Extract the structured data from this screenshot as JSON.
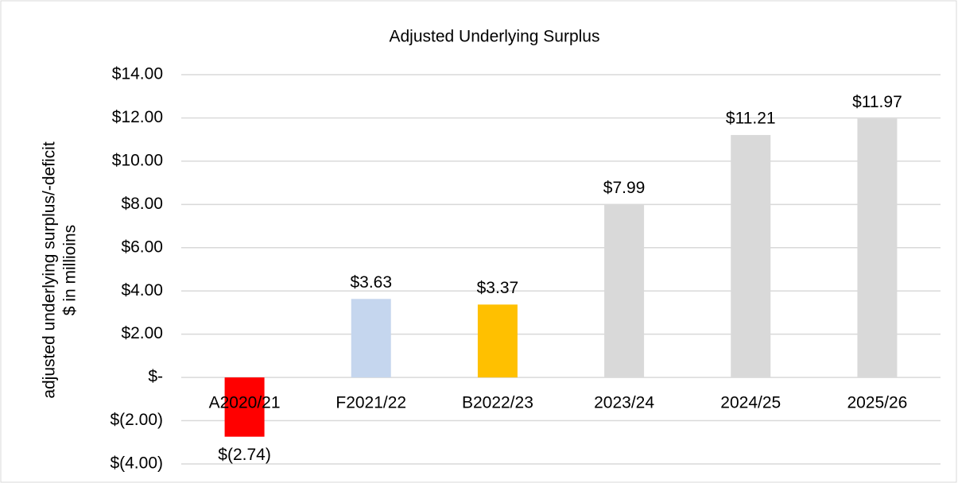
{
  "chart_data": {
    "type": "bar",
    "title": "Adjusted Underlying Surplus",
    "ylabel": [
      "adjusted underlying surplus/-deficit",
      "$ in millioins"
    ],
    "categories": [
      "A2020/21",
      "F2021/22",
      "B2022/23",
      "2023/24",
      "2024/25",
      "2025/26"
    ],
    "values": [
      -2.74,
      3.63,
      3.37,
      7.99,
      11.21,
      11.97
    ],
    "value_labels": [
      "$(2.74)",
      "$3.63",
      "$3.37",
      "$7.99",
      "$11.21",
      "$11.97"
    ],
    "colors": [
      "#ff0000",
      "#c5d6ee",
      "#ffc000",
      "#d9d9d9",
      "#d9d9d9",
      "#d9d9d9"
    ],
    "ylim": [
      -4,
      14
    ],
    "yticks": [
      {
        "value": -4,
        "label": "$(4.00)"
      },
      {
        "value": -2,
        "label": "$(2.00)"
      },
      {
        "value": 0,
        "label": "$-"
      },
      {
        "value": 2,
        "label": "$2.00"
      },
      {
        "value": 4,
        "label": "$4.00"
      },
      {
        "value": 6,
        "label": "$6.00"
      },
      {
        "value": 8,
        "label": "$8.00"
      },
      {
        "value": 10,
        "label": "$10.00"
      },
      {
        "value": 12,
        "label": "$12.00"
      },
      {
        "value": 14,
        "label": "$14.00"
      }
    ],
    "grid": true
  }
}
